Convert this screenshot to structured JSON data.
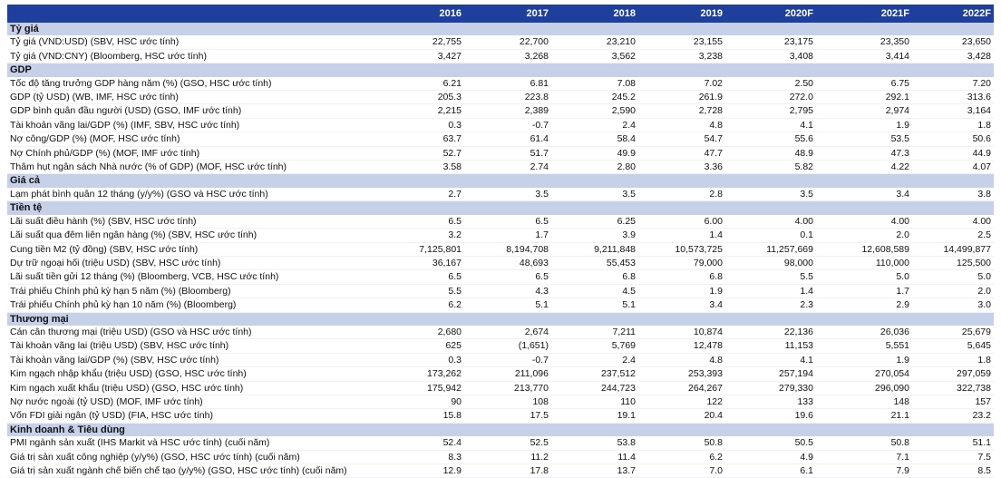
{
  "header": {
    "label": "",
    "years": [
      "2016",
      "2017",
      "2018",
      "2019",
      "2020F",
      "2021F",
      "2022F"
    ]
  },
  "sections": [
    {
      "title": "Tỷ giá",
      "rows": [
        {
          "label": "Tỷ giá (VND:USD) (SBV, HSC ước tính)",
          "values": [
            "22,755",
            "22,700",
            "23,210",
            "23,155",
            "23,175",
            "23,350",
            "23,650"
          ]
        },
        {
          "label": "Tỷ giá (VND:CNY) (Bloomberg, HSC ước tính)",
          "values": [
            "3,427",
            "3,268",
            "3,562",
            "3,238",
            "3,408",
            "3,414",
            "3,428"
          ]
        }
      ]
    },
    {
      "title": "GDP",
      "rows": [
        {
          "label": "Tốc độ tăng trưởng GDP hàng năm (%) (GSO, HSC ước tính)",
          "values": [
            "6.21",
            "6.81",
            "7.08",
            "7.02",
            "2.50",
            "6.75",
            "7.20"
          ]
        },
        {
          "label": "GDP (tỷ USD) (WB, IMF, HSC ước tính)",
          "values": [
            "205.3",
            "223.8",
            "245.2",
            "261.9",
            "272.0",
            "292.1",
            "313.6"
          ]
        },
        {
          "label": "GDP bình quân đầu người (USD) (GSO, IMF ước tính)",
          "values": [
            "2,215",
            "2,389",
            "2,590",
            "2,728",
            "2,795",
            "2,974",
            "3,164"
          ]
        },
        {
          "label": "Tài khoản vãng lai/GDP (%) (IMF, SBV, HSC ước tính)",
          "values": [
            "0.3",
            "-0.7",
            "2.4",
            "4.8",
            "4.1",
            "1.9",
            "1.8"
          ]
        },
        {
          "label": "Nợ công/GDP (%) (MOF, HSC ước tính)",
          "values": [
            "63.7",
            "61.4",
            "58.4",
            "54.7",
            "55.6",
            "53.5",
            "50.6"
          ]
        },
        {
          "label": "Nợ Chính phủ/GDP (%) (MOF, IMF ước tính)",
          "values": [
            "52.7",
            "51.7",
            "49.9",
            "47.7",
            "48.9",
            "47.3",
            "44.9"
          ]
        },
        {
          "label": "Thâm hụt ngân sách Nhà nước (% of GDP) (MOF, HSC ước tính)",
          "values": [
            "3.58",
            "2.74",
            "2.80",
            "3.36",
            "5.82",
            "4.22",
            "4.07"
          ]
        }
      ]
    },
    {
      "title": "Giá cả",
      "rows": [
        {
          "label": "Lạm phát bình quân 12 tháng (y/y%) (GSO và HSC ước tính)",
          "values": [
            "2.7",
            "3.5",
            "3.5",
            "2.8",
            "3.5",
            "3.4",
            "3.8"
          ]
        }
      ]
    },
    {
      "title": "Tiền tệ",
      "rows": [
        {
          "label": "Lãi suất điều hành (%) (SBV, HSC ước tính)",
          "values": [
            "6.5",
            "6.5",
            "6.25",
            "6.00",
            "4.00",
            "4.00",
            "4.00"
          ]
        },
        {
          "label": "Lãi suất qua đêm liên ngân hàng (%) (SBV, HSC ước tính)",
          "values": [
            "3.2",
            "1.7",
            "3.9",
            "1.4",
            "0.1",
            "2.0",
            "2.5"
          ]
        },
        {
          "label": "Cung tiền M2 (tỷ đồng) (SBV, HSC ước tính)",
          "values": [
            "7,125,801",
            "8,194,708",
            "9,211,848",
            "10,573,725",
            "11,257,669",
            "12,608,589",
            "14,499,877"
          ]
        },
        {
          "label": "Dự trữ ngoại hối (triệu USD) (SBV, HSC ước tính)",
          "values": [
            "36,167",
            "48,693",
            "55,453",
            "79,000",
            "98,000",
            "110,000",
            "125,500"
          ]
        },
        {
          "label": "Lãi suất tiền gửi 12 tháng (%) (Bloomberg, VCB, HSC ước tính)",
          "values": [
            "6.5",
            "6.5",
            "6.8",
            "6.8",
            "5.5",
            "5.0",
            "5.0"
          ]
        },
        {
          "label": "Trái phiếu Chính phủ kỳ hạn 5 năm (%) (Bloomberg)",
          "values": [
            "5.5",
            "4.3",
            "4.5",
            "1.9",
            "1.4",
            "1.7",
            "2.0"
          ]
        },
        {
          "label": "Trái phiếu Chính phủ kỳ hạn 10 năm (%) (Bloomberg)",
          "values": [
            "6.2",
            "5.1",
            "5.1",
            "3.4",
            "2.3",
            "2.9",
            "3.0"
          ]
        }
      ]
    },
    {
      "title": "Thương mại",
      "rows": [
        {
          "label": "Cán cân thương mại (triệu USD) (GSO và HSC ước tính)",
          "values": [
            "2,680",
            "2,674",
            "7,211",
            "10,874",
            "22,136",
            "26,036",
            "25,679"
          ]
        },
        {
          "label": "Tài khoản vãng lai (triệu USD) (SBV, HSC ước tính)",
          "values": [
            "625",
            "(1,651)",
            "5,769",
            "12,478",
            "11,153",
            "5,551",
            "5,645"
          ]
        },
        {
          "label": "Tài khoản vãng lai/GDP (%) (SBV, HSC ước tính)",
          "values": [
            "0.3",
            "-0.7",
            "2.4",
            "4.8",
            "4.1",
            "1.9",
            "1.8"
          ]
        },
        {
          "label": "Kim ngạch nhập khẩu (triệu USD) (GSO, HSC ước tính)",
          "values": [
            "173,262",
            "211,096",
            "237,512",
            "253,393",
            "257,194",
            "270,054",
            "297,059"
          ]
        },
        {
          "label": "Kim ngạch xuất khẩu (triệu USD) (GSO, HSC ước tính)",
          "values": [
            "175,942",
            "213,770",
            "244,723",
            "264,267",
            "279,330",
            "296,090",
            "322,738"
          ]
        },
        {
          "label": "Nợ nước ngoài (tỷ USD) (MOF, IMF ước tính)",
          "values": [
            "90",
            "108",
            "110",
            "122",
            "133",
            "148",
            "157"
          ]
        },
        {
          "label": "Vốn FDI giải ngân (tỷ USD) (FIA, HSC ước tính)",
          "values": [
            "15.8",
            "17.5",
            "19.1",
            "20.4",
            "19.6",
            "21.1",
            "23.2"
          ]
        }
      ]
    },
    {
      "title": "Kinh doanh & Tiêu dùng",
      "rows": [
        {
          "label": "PMI ngành sản xuất (IHS Markit và HSC ước tính) (cuối năm)",
          "values": [
            "52.4",
            "52.5",
            "53.8",
            "50.8",
            "50.5",
            "50.8",
            "51.1"
          ]
        },
        {
          "label": "Giá trị sản xuất công nghiệp (y/y%) (GSO, HSC ước tính) (cuối năm)",
          "values": [
            "8.3",
            "11.2",
            "11.4",
            "6.2",
            "4.9",
            "7.1",
            "7.5"
          ]
        },
        {
          "label": "Giá trị sản xuất ngành chế biến chế tạo (y/y%) (GSO, HSC ước tính) (cuối năm)",
          "values": [
            "12.9",
            "17.8",
            "13.7",
            "7.0",
            "6.1",
            "7.9",
            "8.5"
          ]
        }
      ]
    }
  ]
}
